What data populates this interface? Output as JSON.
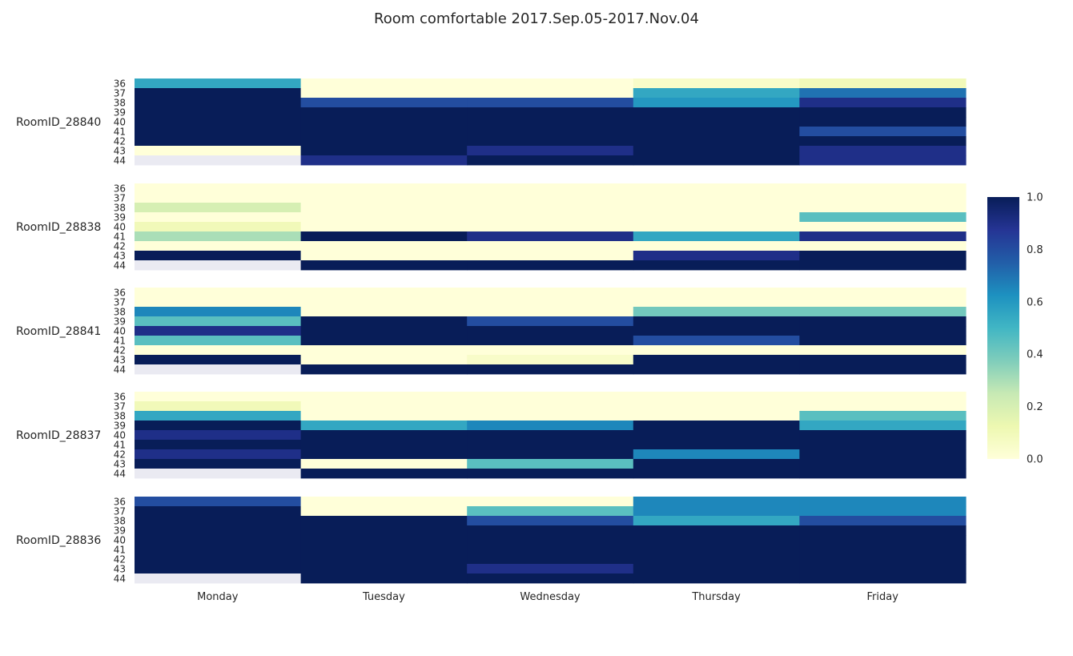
{
  "chart_data": {
    "type": "heatmap",
    "title": "Room comfortable  2017.Sep.05-2017.Nov.04",
    "x_categories": [
      "Monday",
      "Tuesday",
      "Wednesday",
      "Thursday",
      "Friday"
    ],
    "y_categories": [
      "36",
      "37",
      "38",
      "39",
      "40",
      "41",
      "42",
      "43",
      "44"
    ],
    "colormap": "YlGnBu",
    "missing_color": "#eaeaf2",
    "vmin": 0.0,
    "vmax": 1.0,
    "colorbar_ticks": [
      "0.0",
      "0.2",
      "0.4",
      "0.6",
      "0.8",
      "1.0"
    ],
    "panels": [
      {
        "name": "RoomID_28840",
        "values": [
          [
            0.55,
            0.0,
            0.0,
            0.05,
            0.1
          ],
          [
            1.0,
            0.0,
            0.0,
            0.55,
            0.7
          ],
          [
            1.0,
            0.8,
            0.8,
            0.6,
            0.9
          ],
          [
            1.0,
            1.0,
            1.0,
            1.0,
            1.0
          ],
          [
            1.0,
            1.0,
            1.0,
            1.0,
            1.0
          ],
          [
            1.0,
            1.0,
            1.0,
            1.0,
            0.8
          ],
          [
            1.0,
            1.0,
            1.0,
            1.0,
            1.0
          ],
          [
            0.0,
            1.0,
            0.9,
            1.0,
            0.9
          ],
          [
            null,
            0.9,
            1.0,
            1.0,
            0.9
          ]
        ]
      },
      {
        "name": "RoomID_28838",
        "values": [
          [
            0.0,
            0.0,
            0.0,
            0.0,
            0.0
          ],
          [
            0.0,
            0.0,
            0.0,
            0.0,
            0.0
          ],
          [
            0.2,
            0.0,
            0.0,
            0.0,
            0.0
          ],
          [
            0.0,
            0.0,
            0.0,
            0.0,
            0.45
          ],
          [
            0.1,
            0.0,
            0.0,
            0.0,
            0.0
          ],
          [
            0.3,
            1.0,
            0.9,
            0.55,
            0.9
          ],
          [
            0.0,
            0.0,
            0.0,
            0.0,
            0.0
          ],
          [
            1.0,
            0.0,
            0.0,
            0.9,
            1.0
          ],
          [
            null,
            1.0,
            1.0,
            1.0,
            1.0
          ]
        ]
      },
      {
        "name": "RoomID_28841",
        "values": [
          [
            0.0,
            0.0,
            0.0,
            0.0,
            0.0
          ],
          [
            0.0,
            0.0,
            0.0,
            0.0,
            0.0
          ],
          [
            0.65,
            0.0,
            0.0,
            0.4,
            0.4
          ],
          [
            0.45,
            1.0,
            0.8,
            1.0,
            1.0
          ],
          [
            0.9,
            1.0,
            1.0,
            1.0,
            1.0
          ],
          [
            0.45,
            1.0,
            1.0,
            0.8,
            1.0
          ],
          [
            0.0,
            0.0,
            0.0,
            0.0,
            0.0
          ],
          [
            1.0,
            0.0,
            0.05,
            1.0,
            1.0
          ],
          [
            null,
            1.0,
            1.0,
            1.0,
            1.0
          ]
        ]
      },
      {
        "name": "RoomID_28837",
        "values": [
          [
            0.0,
            0.0,
            0.0,
            0.0,
            0.0
          ],
          [
            0.1,
            0.0,
            0.0,
            0.0,
            0.0
          ],
          [
            0.55,
            0.0,
            0.0,
            0.0,
            0.45
          ],
          [
            1.0,
            0.55,
            0.65,
            1.0,
            0.55
          ],
          [
            0.9,
            1.0,
            1.0,
            1.0,
            1.0
          ],
          [
            1.0,
            1.0,
            1.0,
            1.0,
            1.0
          ],
          [
            0.9,
            1.0,
            1.0,
            0.65,
            1.0
          ],
          [
            1.0,
            0.0,
            0.45,
            1.0,
            1.0
          ],
          [
            null,
            1.0,
            1.0,
            1.0,
            1.0
          ]
        ]
      },
      {
        "name": "RoomID_28836",
        "values": [
          [
            0.8,
            0.0,
            0.0,
            0.65,
            0.65
          ],
          [
            1.0,
            0.0,
            0.45,
            0.65,
            0.65
          ],
          [
            1.0,
            1.0,
            0.8,
            0.55,
            0.8
          ],
          [
            1.0,
            1.0,
            1.0,
            1.0,
            1.0
          ],
          [
            1.0,
            1.0,
            1.0,
            1.0,
            1.0
          ],
          [
            1.0,
            1.0,
            1.0,
            1.0,
            1.0
          ],
          [
            1.0,
            1.0,
            1.0,
            1.0,
            1.0
          ],
          [
            1.0,
            1.0,
            0.9,
            1.0,
            1.0
          ],
          [
            null,
            1.0,
            1.0,
            1.0,
            1.0
          ]
        ]
      }
    ]
  }
}
